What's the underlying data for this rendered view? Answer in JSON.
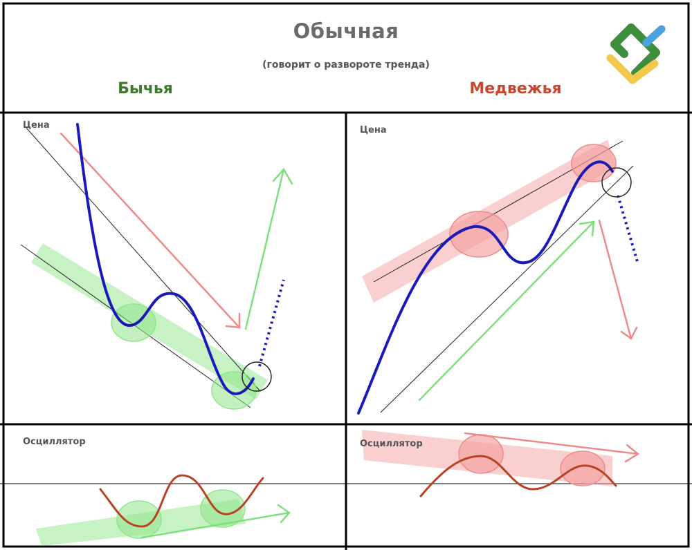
{
  "header": {
    "title": "Обычная",
    "subtitle": "(говорит о развороте тренда)"
  },
  "columns": {
    "bullish": {
      "label": "Бычья",
      "color": "#3d7a2a"
    },
    "bearish": {
      "label": "Медвежья",
      "color": "#c8462e"
    }
  },
  "panels": {
    "bull_price_label": "Цена",
    "bear_price_label": "Цена",
    "bull_osc_label": "Осциллятор",
    "bear_osc_label": "Осциллятор"
  },
  "colors": {
    "price_line": "#1a1ab8",
    "osc_line": "#b94224",
    "green_zone": "#8fe68a",
    "red_zone": "#f4a0a0",
    "green_arrow": "#7de07a",
    "red_arrow": "#ee8a8a",
    "logo_green": "#3e8e3e",
    "logo_blue": "#4aa3df",
    "logo_yellow": "#f2c94c"
  },
  "logo": {
    "icon": "brand-logo-icon"
  }
}
